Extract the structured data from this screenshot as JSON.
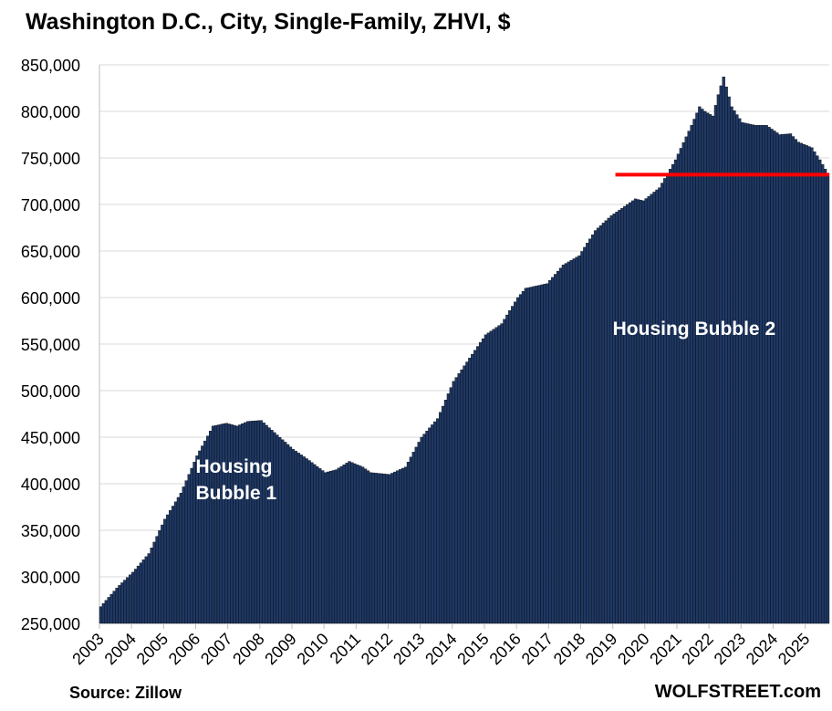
{
  "header": {
    "title": "Washington D.C., City, Single-Family, ZHVI, $"
  },
  "footer": {
    "source": "Source: Zillow",
    "brand": "WOLFSTREET.com"
  },
  "colors": {
    "bar": "#1f3864",
    "bar_edge": "#000000",
    "grid": "#d9d9d9",
    "reference_line": "#ff0000",
    "annotation_text": "#ffffff"
  },
  "chart_data": {
    "type": "bar",
    "title": "Washington D.C., City, Single-Family, ZHVI, $",
    "xlabel": "",
    "ylabel": "",
    "ylim": [
      250000,
      850000
    ],
    "yticks": [
      250000,
      300000,
      350000,
      400000,
      450000,
      500000,
      550000,
      600000,
      650000,
      700000,
      750000,
      800000,
      850000
    ],
    "ytick_labels": [
      "250,000",
      "300,000",
      "350,000",
      "400,000",
      "450,000",
      "500,000",
      "550,000",
      "600,000",
      "650,000",
      "700,000",
      "750,000",
      "800,000",
      "850,000"
    ],
    "x_tick_labels": [
      "2003",
      "2004",
      "2005",
      "2006",
      "2007",
      "2008",
      "2009",
      "2010",
      "2011",
      "2012",
      "2013",
      "2014",
      "2015",
      "2016",
      "2017",
      "2018",
      "2019",
      "2020",
      "2021",
      "2022",
      "2023",
      "2024",
      "2025"
    ],
    "frequency": "monthly",
    "start": "2003-01",
    "grid": true,
    "anchors": [
      [
        "2003-01",
        268000
      ],
      [
        "2003-07",
        288000
      ],
      [
        "2004-01",
        305000
      ],
      [
        "2004-07",
        325000
      ],
      [
        "2005-01",
        362000
      ],
      [
        "2005-07",
        390000
      ],
      [
        "2006-01",
        430000
      ],
      [
        "2006-07",
        462000
      ],
      [
        "2006-12",
        465000
      ],
      [
        "2007-04",
        462000
      ],
      [
        "2007-08",
        467000
      ],
      [
        "2008-01",
        468000
      ],
      [
        "2008-06",
        455000
      ],
      [
        "2009-01",
        437000
      ],
      [
        "2009-07",
        425000
      ],
      [
        "2010-01",
        412000
      ],
      [
        "2010-05",
        415000
      ],
      [
        "2010-10",
        424000
      ],
      [
        "2011-03",
        418000
      ],
      [
        "2011-06",
        412000
      ],
      [
        "2012-01",
        410000
      ],
      [
        "2012-07",
        418000
      ],
      [
        "2013-01",
        450000
      ],
      [
        "2013-07",
        470000
      ],
      [
        "2014-01",
        510000
      ],
      [
        "2014-07",
        535000
      ],
      [
        "2015-01",
        560000
      ],
      [
        "2015-07",
        572000
      ],
      [
        "2016-01",
        600000
      ],
      [
        "2016-04",
        610000
      ],
      [
        "2016-12",
        615000
      ],
      [
        "2017-06",
        635000
      ],
      [
        "2017-12",
        645000
      ],
      [
        "2018-06",
        672000
      ],
      [
        "2018-12",
        688000
      ],
      [
        "2019-06",
        700000
      ],
      [
        "2019-09",
        706000
      ],
      [
        "2019-12",
        704000
      ],
      [
        "2020-06",
        718000
      ],
      [
        "2020-12",
        748000
      ],
      [
        "2021-06",
        785000
      ],
      [
        "2021-09",
        805000
      ],
      [
        "2021-11",
        800000
      ],
      [
        "2022-02",
        795000
      ],
      [
        "2022-04",
        818000
      ],
      [
        "2022-06",
        837000
      ],
      [
        "2022-09",
        805000
      ],
      [
        "2023-01",
        788000
      ],
      [
        "2023-06",
        785000
      ],
      [
        "2023-10",
        785000
      ],
      [
        "2024-03",
        775000
      ],
      [
        "2024-07",
        776000
      ],
      [
        "2024-10",
        767000
      ],
      [
        "2025-03",
        761000
      ],
      [
        "2025-06",
        748000
      ],
      [
        "2025-09",
        733000
      ]
    ],
    "reference_line": {
      "value": 732000,
      "start": "2019-02"
    },
    "annotations": [
      {
        "text_lines": [
          "Housing",
          "Bubble 1"
        ],
        "x": "2006-01",
        "y": 412000
      },
      {
        "text_lines": [
          "Housing Bubble 2"
        ],
        "x": "2019-01",
        "y": 560000
      }
    ]
  }
}
